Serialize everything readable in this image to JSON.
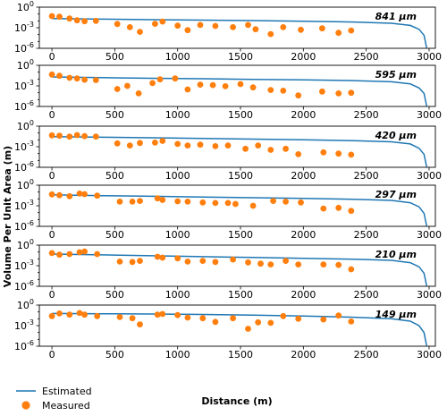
{
  "figure": {
    "ylabel": "Volume Per Unit Area (m)",
    "xlabel": "Distance (m)",
    "legend": {
      "placement": "bottom-left",
      "entries": [
        "Estimated",
        "Measured"
      ]
    },
    "colors": {
      "estimated": "#1f77b4",
      "measured": "#ff7f0e"
    }
  },
  "chart_data": [
    {
      "type": "scatter",
      "annotation": "841  μm",
      "xlim": [
        -100,
        3050
      ],
      "ylim": [
        "1e-6",
        "1e0"
      ],
      "ylog": true,
      "xticks": [
        0,
        500,
        1000,
        1500,
        2000,
        2500,
        3000
      ],
      "yticks": [
        "10^0",
        "10^-3",
        "10^-6"
      ],
      "series": [
        {
          "name": "Estimated",
          "kind": "line",
          "x": [
            0,
            400,
            800,
            1200,
            1600,
            2000,
            2400,
            2700,
            2850,
            2920,
            2960,
            2980
          ],
          "y": [
            0.022,
            0.018,
            0.015,
            0.013,
            0.011,
            0.009,
            0.0068,
            0.0045,
            0.0022,
            0.0006,
            8e-05,
            1.2e-06
          ]
        },
        {
          "name": "Measured",
          "kind": "points",
          "x": [
            0,
            60,
            140,
            200,
            260,
            350,
            520,
            620,
            700,
            820,
            880,
            1000,
            1080,
            1180,
            1300,
            1440,
            1560,
            1620,
            1740,
            1840,
            1980,
            2150,
            2280,
            2380
          ],
          "y": [
            0.05,
            0.04,
            0.022,
            0.012,
            0.009,
            0.01,
            0.0035,
            0.0012,
            0.00025,
            0.0038,
            0.008,
            0.002,
            0.00045,
            0.0025,
            0.0018,
            0.0012,
            0.0025,
            0.0006,
            0.00012,
            0.0012,
            0.0005,
            0.0008,
            0.00018,
            0.0004
          ]
        }
      ]
    },
    {
      "type": "scatter",
      "annotation": "595  μm",
      "xlim": [
        -100,
        3050
      ],
      "ylim": [
        "1e-6",
        "1e0"
      ],
      "ylog": true,
      "xticks": [
        0,
        500,
        1000,
        1500,
        2000,
        2500,
        3000
      ],
      "yticks": [
        "10^0",
        "10^-3",
        "10^-6"
      ],
      "series": [
        {
          "name": "Estimated",
          "kind": "line",
          "x": [
            0,
            400,
            800,
            1200,
            1600,
            2000,
            2400,
            2700,
            2850,
            2920,
            2960,
            2980
          ],
          "y": [
            0.02,
            0.016,
            0.013,
            0.011,
            0.009,
            0.0075,
            0.0058,
            0.004,
            0.002,
            0.0005,
            8e-05,
            1.2e-06
          ]
        },
        {
          "name": "Measured",
          "kind": "points",
          "x": [
            0,
            60,
            140,
            200,
            260,
            350,
            520,
            600,
            690,
            800,
            860,
            980,
            1080,
            1180,
            1280,
            1380,
            1500,
            1600,
            1740,
            1840,
            1960,
            2150,
            2280,
            2380
          ],
          "y": [
            0.045,
            0.03,
            0.015,
            0.012,
            0.008,
            0.007,
            0.00035,
            0.001,
            8e-05,
            0.0025,
            0.009,
            0.012,
            0.0003,
            0.0015,
            0.0013,
            0.0009,
            0.0018,
            0.0006,
            0.00025,
            0.0002,
            4e-05,
            0.00015,
            8e-05,
            0.0001
          ]
        }
      ]
    },
    {
      "type": "scatter",
      "annotation": "420  μm",
      "xlim": [
        -100,
        3050
      ],
      "ylim": [
        "1e-6",
        "1e0"
      ],
      "ylog": true,
      "xticks": [
        0,
        500,
        1000,
        1500,
        2000,
        2500,
        3000
      ],
      "yticks": [
        "10^0",
        "10^-3",
        "10^-6"
      ],
      "series": [
        {
          "name": "Estimated",
          "kind": "line",
          "x": [
            0,
            400,
            800,
            1200,
            1600,
            2000,
            2400,
            2700,
            2850,
            2920,
            2960,
            2980
          ],
          "y": [
            0.03,
            0.024,
            0.02,
            0.016,
            0.013,
            0.01,
            0.0078,
            0.0052,
            0.0025,
            0.0006,
            8e-05,
            1.2e-06
          ]
        },
        {
          "name": "Measured",
          "kind": "points",
          "x": [
            0,
            60,
            140,
            200,
            260,
            350,
            520,
            620,
            700,
            820,
            880,
            1000,
            1080,
            1180,
            1300,
            1400,
            1540,
            1640,
            1740,
            1860,
            1960,
            2160,
            2280,
            2380
          ],
          "y": [
            0.045,
            0.04,
            0.03,
            0.05,
            0.035,
            0.03,
            0.003,
            0.0015,
            0.0035,
            0.004,
            0.007,
            0.0025,
            0.0015,
            0.002,
            0.0012,
            0.0015,
            0.0005,
            0.0015,
            0.00035,
            0.0005,
            8e-05,
            0.00015,
            0.0001,
            7e-05
          ]
        }
      ]
    },
    {
      "type": "scatter",
      "annotation": "297  μm",
      "xlim": [
        -100,
        3050
      ],
      "ylim": [
        "1e-6",
        "1e0"
      ],
      "ylog": true,
      "xticks": [
        0,
        500,
        1000,
        1500,
        2000,
        2500,
        3000
      ],
      "yticks": [
        "10^0",
        "10^-3",
        "10^-6"
      ],
      "series": [
        {
          "name": "Estimated",
          "kind": "line",
          "x": [
            0,
            400,
            800,
            1200,
            1600,
            2000,
            2400,
            2700,
            2850,
            2920,
            2960,
            2980
          ],
          "y": [
            0.04,
            0.03,
            0.024,
            0.019,
            0.015,
            0.012,
            0.009,
            0.006,
            0.0028,
            0.0007,
            8e-05,
            1.2e-06
          ]
        },
        {
          "name": "Measured",
          "kind": "points",
          "x": [
            0,
            60,
            140,
            220,
            260,
            360,
            540,
            640,
            700,
            840,
            880,
            1000,
            1080,
            1200,
            1300,
            1400,
            1460,
            1600,
            1760,
            1860,
            1980,
            2160,
            2280,
            2380
          ],
          "y": [
            0.045,
            0.035,
            0.025,
            0.06,
            0.05,
            0.03,
            0.004,
            0.004,
            0.005,
            0.012,
            0.007,
            0.0045,
            0.004,
            0.003,
            0.0025,
            0.0025,
            0.0018,
            0.001,
            0.005,
            0.004,
            0.003,
            0.0004,
            0.0005,
            0.00018
          ]
        }
      ]
    },
    {
      "type": "scatter",
      "annotation": "210  μm",
      "xlim": [
        -100,
        3050
      ],
      "ylim": [
        "1e-6",
        "1e0"
      ],
      "ylog": true,
      "xticks": [
        0,
        500,
        1000,
        1500,
        2000,
        2500,
        3000
      ],
      "yticks": [
        "10^0",
        "10^-3",
        "10^-6"
      ],
      "series": [
        {
          "name": "Estimated",
          "kind": "line",
          "x": [
            0,
            400,
            800,
            1200,
            1600,
            2000,
            2400,
            2700,
            2850,
            2920,
            2960,
            2980
          ],
          "y": [
            0.05,
            0.038,
            0.028,
            0.021,
            0.016,
            0.012,
            0.009,
            0.006,
            0.0028,
            0.0007,
            8e-05,
            1.2e-06
          ]
        },
        {
          "name": "Measured",
          "kind": "points",
          "x": [
            0,
            60,
            140,
            220,
            260,
            360,
            540,
            640,
            700,
            840,
            880,
            1000,
            1080,
            1200,
            1300,
            1440,
            1560,
            1660,
            1740,
            1860,
            1960,
            2160,
            2280,
            2380
          ],
          "y": [
            0.07,
            0.04,
            0.05,
            0.09,
            0.12,
            0.05,
            0.004,
            0.0035,
            0.005,
            0.02,
            0.015,
            0.012,
            0.004,
            0.005,
            0.0035,
            0.008,
            0.003,
            0.002,
            0.0015,
            0.005,
            0.0015,
            0.0015,
            0.0013,
            0.0003
          ]
        }
      ]
    },
    {
      "type": "scatter",
      "annotation": "149  μm",
      "xlim": [
        -100,
        3050
      ],
      "ylim": [
        "1e-6",
        "1e0"
      ],
      "ylog": true,
      "xticks": [
        0,
        500,
        1000,
        1500,
        2000,
        2500,
        3000
      ],
      "yticks": [
        "10^0",
        "10^-3",
        "10^-6"
      ],
      "series": [
        {
          "name": "Estimated",
          "kind": "line",
          "x": [
            0,
            400,
            800,
            1200,
            1600,
            2000,
            2400,
            2700,
            2850,
            2920,
            2960,
            2980
          ],
          "y": [
            0.06,
            0.055,
            0.05,
            0.043,
            0.035,
            0.026,
            0.017,
            0.01,
            0.0045,
            0.001,
            0.0001,
            1.2e-06
          ]
        },
        {
          "name": "Measured",
          "kind": "points",
          "x": [
            0,
            60,
            140,
            220,
            260,
            360,
            540,
            640,
            700,
            840,
            880,
            1000,
            1080,
            1200,
            1300,
            1440,
            1560,
            1640,
            1740,
            1840,
            1960,
            2160,
            2280,
            2380
          ],
          "y": [
            0.025,
            0.06,
            0.04,
            0.07,
            0.04,
            0.025,
            0.018,
            0.012,
            0.0015,
            0.04,
            0.05,
            0.035,
            0.015,
            0.012,
            0.0035,
            0.012,
            0.00035,
            0.003,
            0.0025,
            0.025,
            0.01,
            0.008,
            0.03,
            0.004
          ]
        }
      ]
    }
  ]
}
